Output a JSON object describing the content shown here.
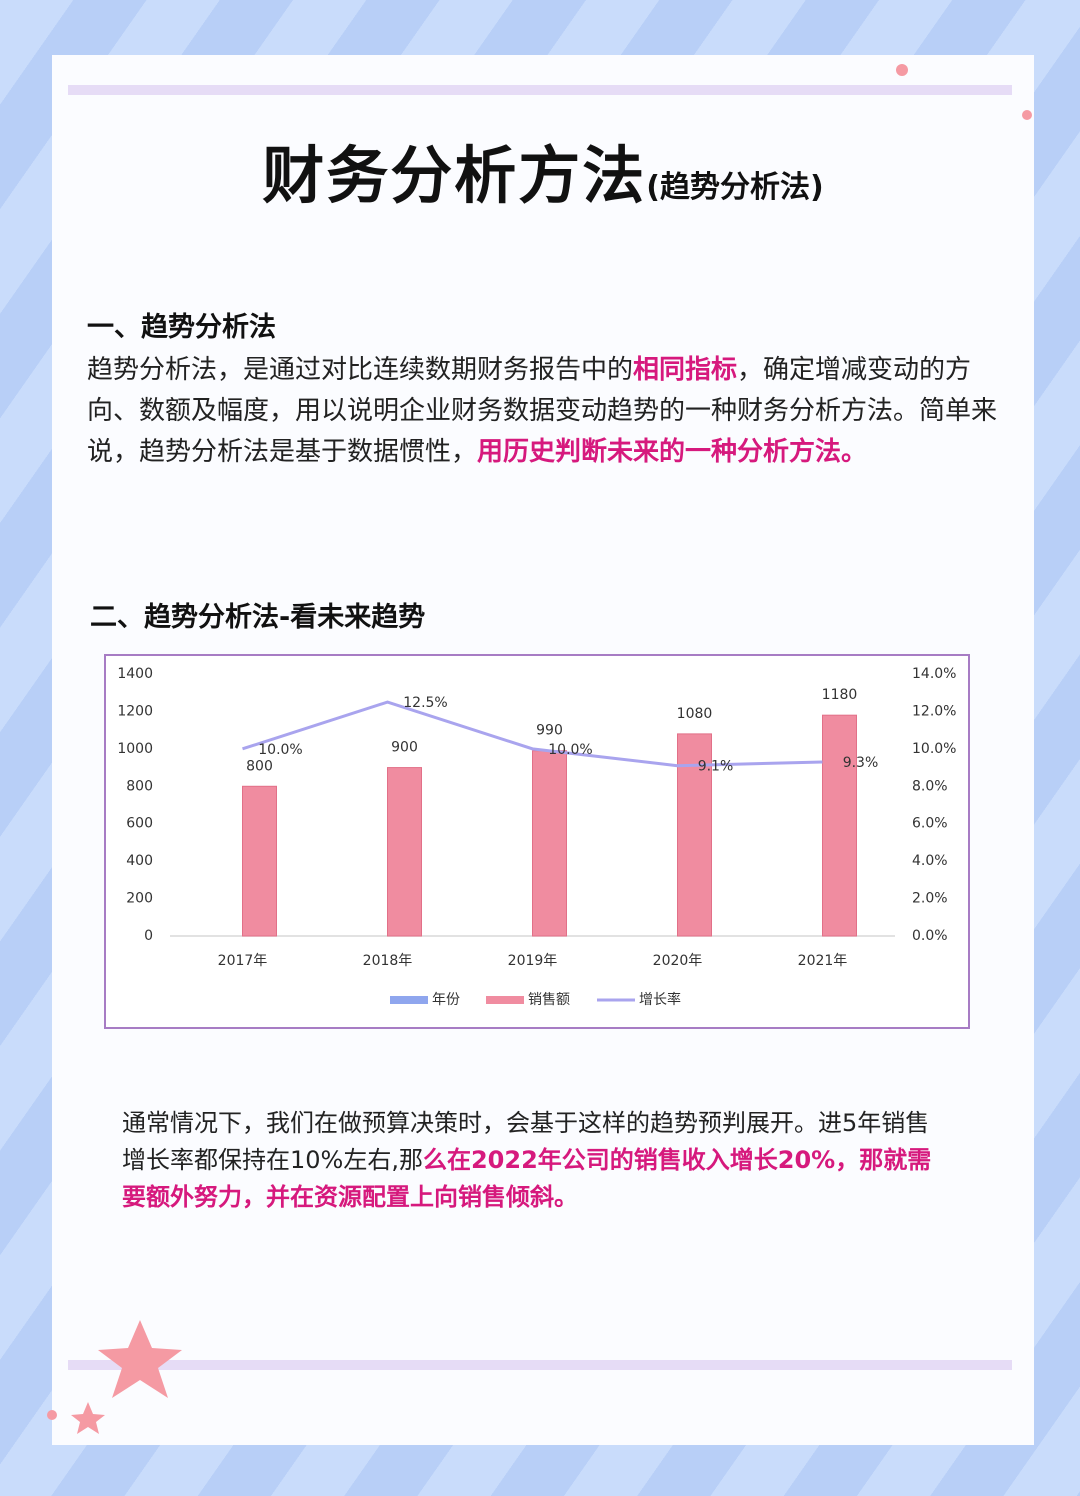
{
  "title": "财务分析方法",
  "title_suffix": "(趋势分析法)",
  "section1": {
    "heading": "一、趋势分析法",
    "paragraph": [
      {
        "text": "趋势分析法，是通过对比连续数期财务报告中的",
        "highlight": false
      },
      {
        "text": "相同指标",
        "highlight": true
      },
      {
        "text": "，确定增减变动的方向、数额及幅度，用以说明企业财务数据变动趋势的一种财务分析方法。简单来说，趋势分析法是基于数据惯性，",
        "highlight": false
      },
      {
        "text": "用历史判断未来的一种分析方法。",
        "highlight": true
      }
    ]
  },
  "section2": {
    "heading": "二、趋势分析法-看未来趋势"
  },
  "chart_data": {
    "type": "bar",
    "categories": [
      "2017年",
      "2018年",
      "2019年",
      "2020年",
      "2021年"
    ],
    "series": [
      {
        "name": "年份",
        "color": "#8fa6ee",
        "values": [
          null,
          null,
          null,
          null,
          null
        ]
      },
      {
        "name": "销售额",
        "color": "#f08ca0",
        "values": [
          800,
          900,
          990,
          1080,
          1180
        ]
      },
      {
        "name": "增长率",
        "color": "#a9a4ee",
        "type": "line",
        "axis": "y2",
        "values": [
          10.0,
          12.5,
          10.0,
          9.1,
          9.3
        ],
        "value_labels": [
          "10.0%",
          "12.5%",
          "10.0%",
          "9.1%",
          "9.3%"
        ]
      }
    ],
    "ylim": [
      0,
      1400
    ],
    "yticks": [
      0,
      200,
      400,
      600,
      800,
      1000,
      1200,
      1400
    ],
    "y2lim": [
      0,
      14
    ],
    "y2ticks": [
      {
        "value": 0,
        "label": "0.0%"
      },
      {
        "value": 2,
        "label": "2.0%"
      },
      {
        "value": 4,
        "label": "4.0%"
      },
      {
        "value": 6,
        "label": "6.0%"
      },
      {
        "value": 8,
        "label": "8.0%"
      },
      {
        "value": 10,
        "label": "10.0%"
      },
      {
        "value": 12,
        "label": "12.0%"
      },
      {
        "value": 14,
        "label": "14.0%"
      }
    ],
    "legend": "bottom"
  },
  "paragraph3": [
    {
      "text": "通常情况下，我们在做预算决策时，会基于这样的趋势预判展开。进5年销售增长率都保持在10%左右,那",
      "highlight": false
    },
    {
      "text": "么在2022年公司的销售收入增长20%，那就需要额外努力，并在资源配置上向销售倾斜。",
      "highlight": true
    }
  ]
}
